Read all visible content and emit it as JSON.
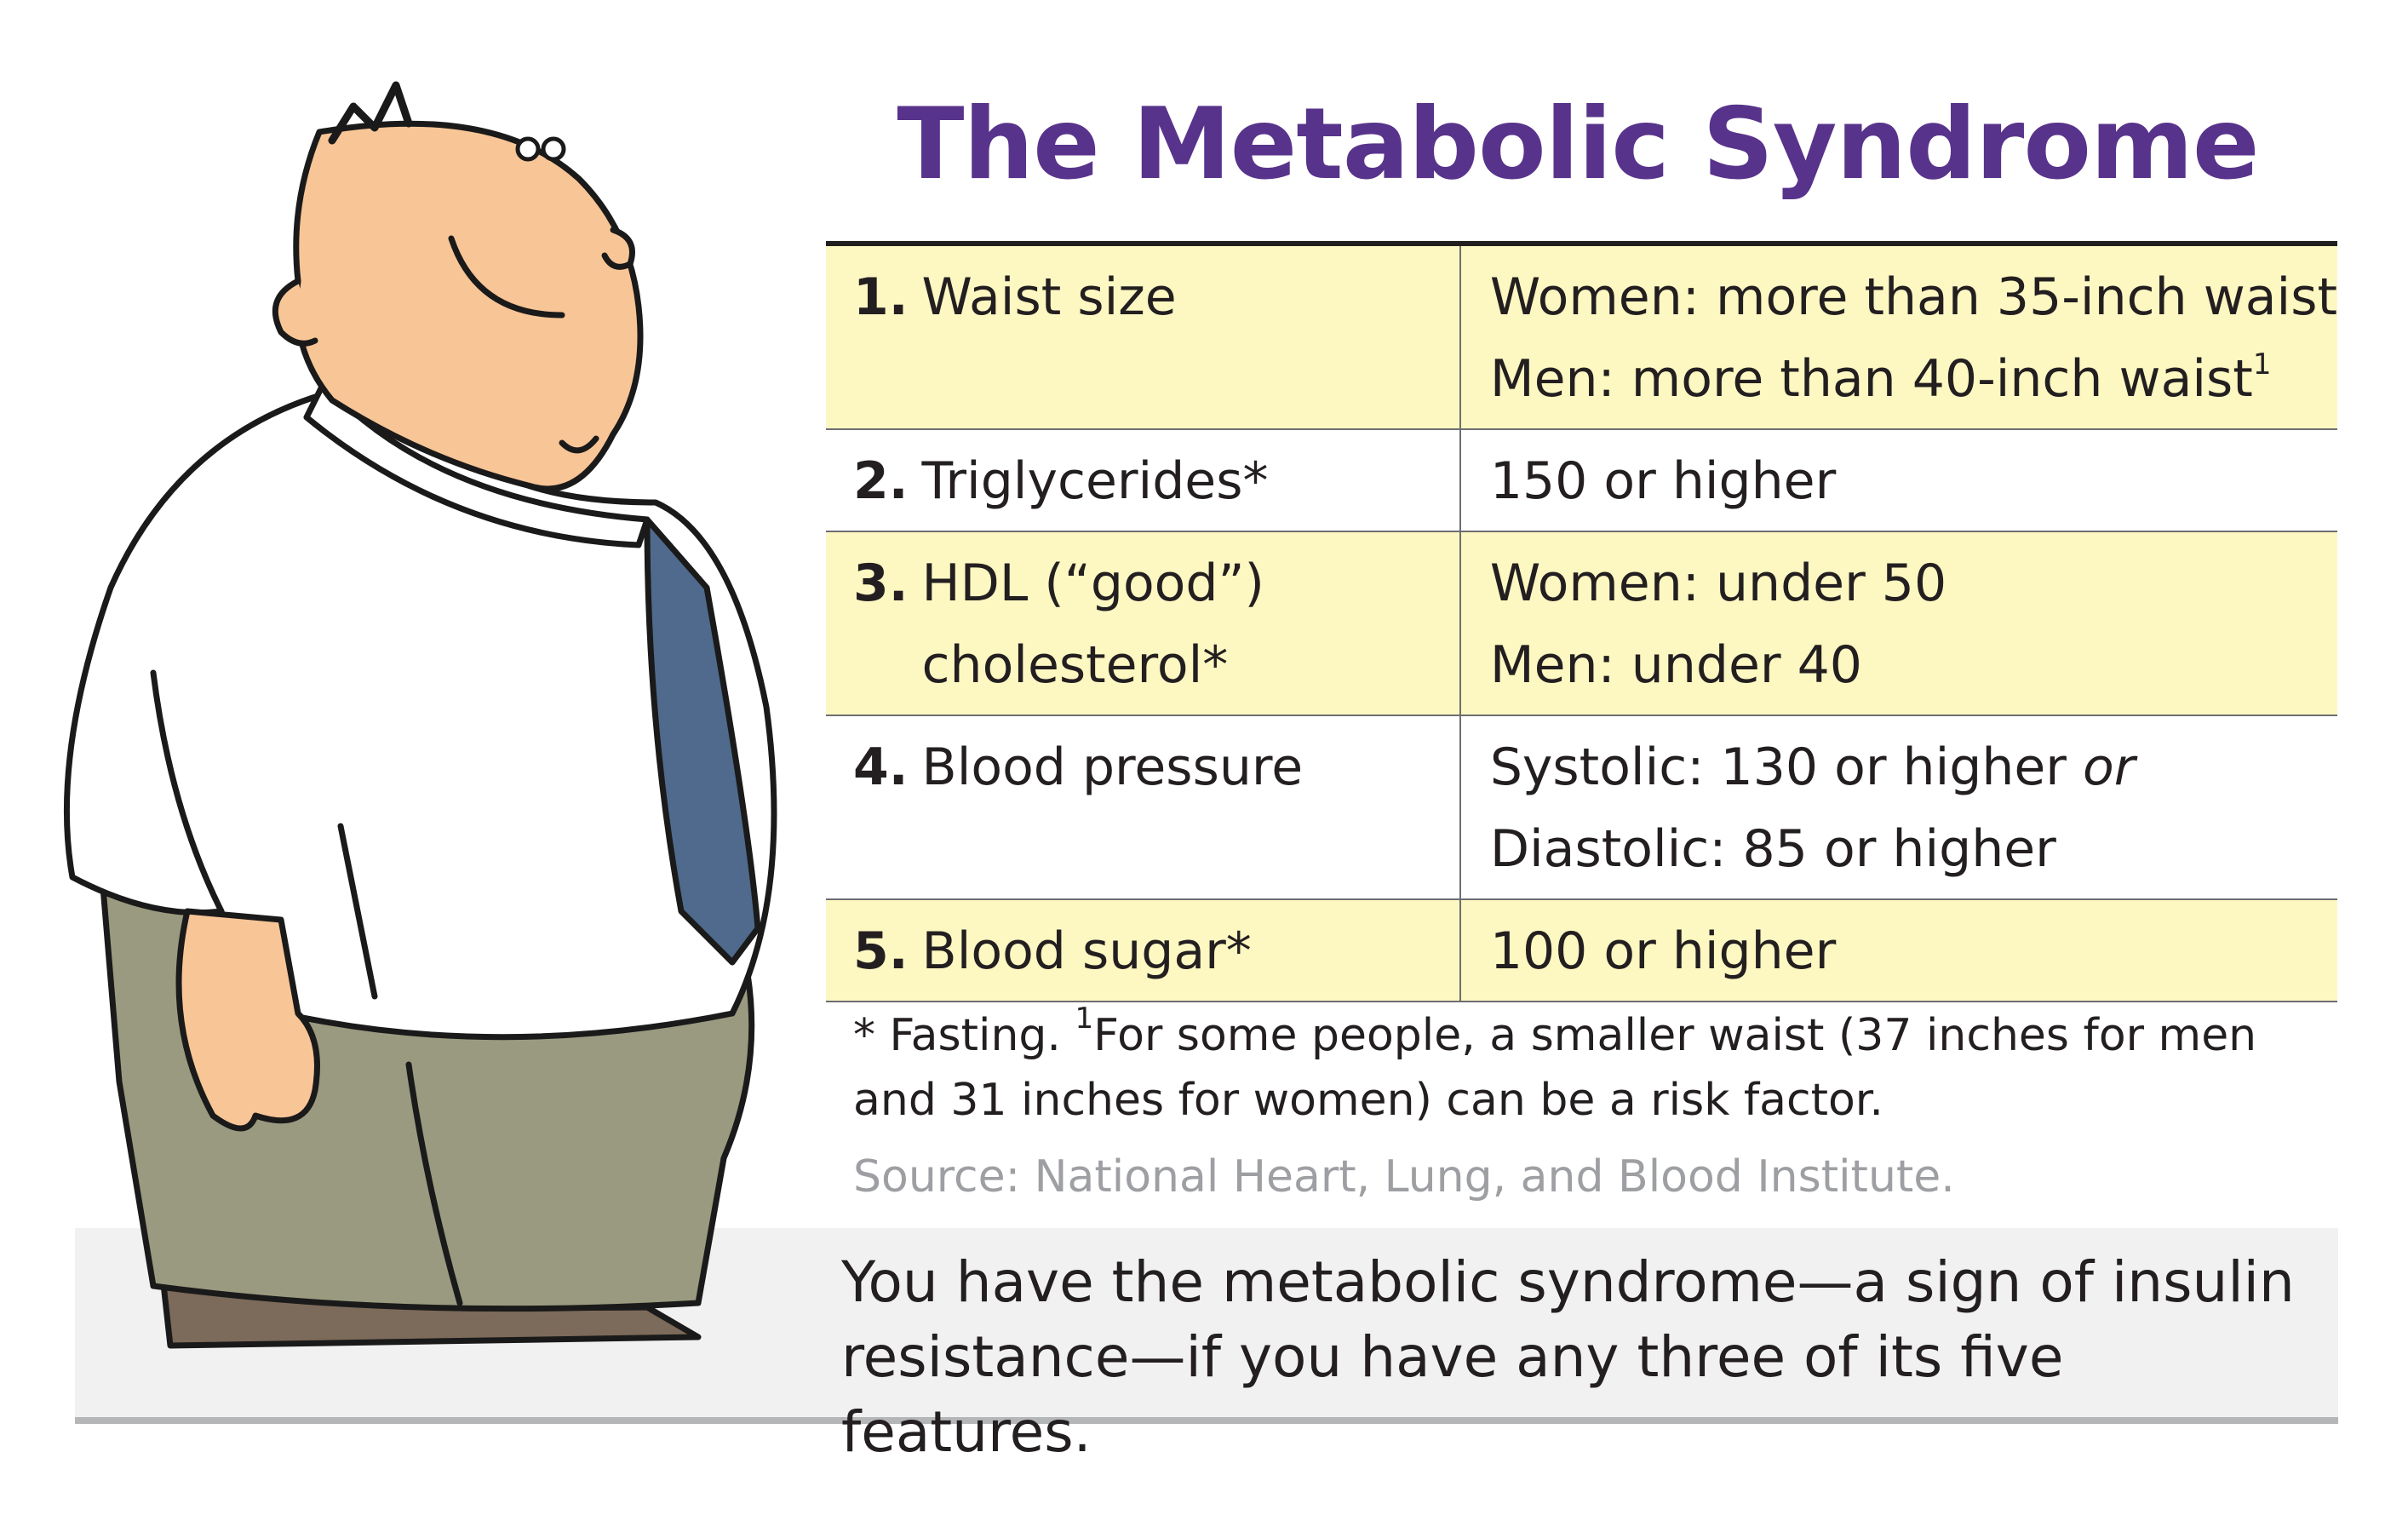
{
  "title": "The Metabolic Syndrome",
  "rows": [
    {
      "num": "1.",
      "feature": "Waist size",
      "values": [
        "Women: more than 35-inch waist",
        "Men: more than 40-inch waist"
      ],
      "marker": "1",
      "shaded": true
    },
    {
      "num": "2.",
      "feature": "Triglycerides*",
      "values": [
        "150 or higher"
      ],
      "shaded": false
    },
    {
      "num": "3.",
      "feature": "HDL (“good”) cholesterol*",
      "values": [
        "Women: under 50",
        "Men: under 40"
      ],
      "shaded": true
    },
    {
      "num": "4.",
      "feature": "Blood pressure",
      "values": [
        "Systolic: 130 or higher",
        "Diastolic: 85 or higher"
      ],
      "or_word": "or",
      "shaded": false
    },
    {
      "num": "5.",
      "feature": "Blood sugar*",
      "values": [
        "100 or higher"
      ],
      "shaded": true
    }
  ],
  "footnote": {
    "asterisk": "* Fasting.",
    "marker": "1",
    "text": "For some people, a smaller waist (37 inches for men and 31 inches for women) can be a risk factor."
  },
  "source": "Source: National Heart, Lung, and Blood Institute.",
  "summary": "You have the metabolic syndrome—a sign of insulin resistance—if you have any three of its five features.",
  "colors": {
    "title": "#58338b",
    "row_shade": "#fdf7c2",
    "tie": "#4f6a8c",
    "skin": "#f8c596",
    "pants": "#9a9a80",
    "band": "#f1f1f2"
  },
  "illustration": "cartoon-man-with-tie"
}
